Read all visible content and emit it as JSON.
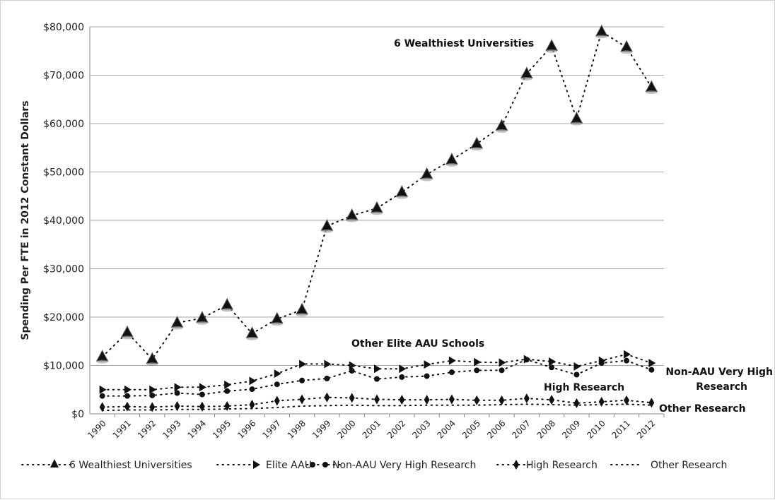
{
  "chart_data": {
    "type": "line",
    "title": "",
    "xlabel": "",
    "ylabel": "Spending Per FTE in 2012 Constant Dollars",
    "ylim": [
      0,
      80000
    ],
    "y_ticks": [
      0,
      10000,
      20000,
      30000,
      40000,
      50000,
      60000,
      70000,
      80000
    ],
    "y_tick_labels": [
      "$0",
      "$10,000",
      "$20,000",
      "$30,000",
      "$40,000",
      "$50,000",
      "$60,000",
      "$70,000",
      "$80,000"
    ],
    "grid": "horizontal",
    "legend_placement": "bottom",
    "categories": [
      "1990",
      "1991",
      "1992",
      "1993",
      "1994",
      "1995",
      "1996",
      "1997",
      "1998",
      "1999",
      "2000",
      "2001",
      "2002",
      "2003",
      "2004",
      "2005",
      "2006",
      "2007",
      "2008",
      "2009",
      "2010",
      "2011",
      "2012"
    ],
    "series": [
      {
        "name": "6 Wealthiest Universities",
        "marker": "bell",
        "values": [
          11800,
          16800,
          11300,
          18800,
          19800,
          22500,
          16600,
          19600,
          21500,
          38800,
          41000,
          42500,
          45800,
          49500,
          52500,
          55800,
          59500,
          70300,
          76000,
          61000,
          79000,
          75800,
          67500
        ]
      },
      {
        "name": "Elite AAU",
        "marker": "triangle-right",
        "values": [
          5000,
          5000,
          5000,
          5500,
          5500,
          6000,
          6800,
          8300,
          10300,
          10300,
          10000,
          9300,
          9300,
          10200,
          11000,
          10700,
          10600,
          11300,
          10800,
          9800,
          11000,
          12300,
          10500
        ]
      },
      {
        "name": "Non-AAU Very High Research",
        "marker": "circle",
        "values": [
          3700,
          3700,
          3800,
          4300,
          4000,
          4700,
          5100,
          6100,
          6900,
          7300,
          8900,
          7200,
          7600,
          7800,
          8600,
          9000,
          9000,
          11200,
          9600,
          8100,
          10500,
          11000,
          9100
        ]
      },
      {
        "name": "High Research",
        "marker": "diamond",
        "values": [
          1400,
          1500,
          1400,
          1600,
          1500,
          1600,
          1900,
          2700,
          3000,
          3400,
          3300,
          3000,
          2900,
          2900,
          3000,
          2800,
          2800,
          3200,
          2900,
          2200,
          2500,
          2800,
          2300
        ]
      },
      {
        "name": "Other Research",
        "marker": "none",
        "values": [
          700,
          800,
          800,
          900,
          900,
          1000,
          1100,
          1300,
          1600,
          1700,
          1800,
          1700,
          1700,
          1800,
          1800,
          1800,
          1900,
          2000,
          1900,
          1800,
          1900,
          2000,
          1800
        ]
      }
    ],
    "annotations": [
      {
        "id": "wealthiest",
        "text": "6 Wealthiest Universities"
      },
      {
        "id": "elite",
        "text": "Other Elite AAU  Schools"
      },
      {
        "id": "nonaau_1",
        "text": "Non-AAU Very High"
      },
      {
        "id": "nonaau_2",
        "text": "Research"
      },
      {
        "id": "high",
        "text": "High Research"
      },
      {
        "id": "other",
        "text": "Other Research"
      }
    ]
  }
}
